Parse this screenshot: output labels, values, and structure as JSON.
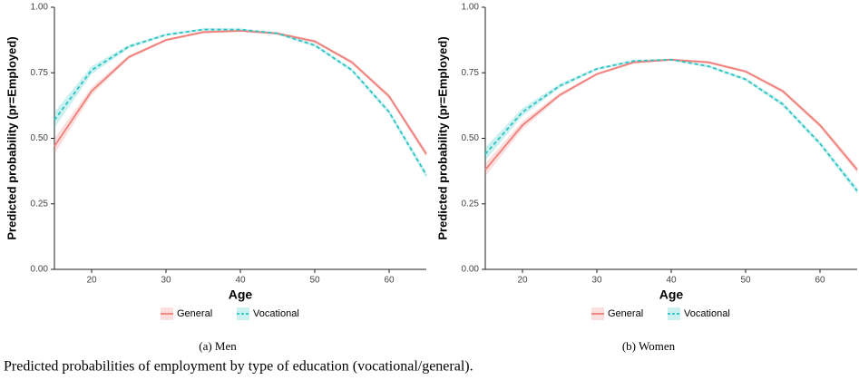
{
  "chart_data": [
    {
      "type": "line",
      "caption": "(a) Men",
      "xlabel": "Age",
      "ylabel": "Predicted probability (pr=Employed)",
      "x": [
        15,
        20,
        25,
        30,
        35,
        40,
        45,
        50,
        55,
        60,
        65
      ],
      "xlim": [
        15,
        65
      ],
      "xticks": [
        20,
        30,
        40,
        50,
        60
      ],
      "ylim": [
        0,
        1
      ],
      "yticks": [
        {
          "value": 0,
          "label": "0.00"
        },
        {
          "value": 0.25,
          "label": "0.25"
        },
        {
          "value": 0.5,
          "label": "0.50"
        },
        {
          "value": 0.75,
          "label": "0.75"
        },
        {
          "value": 1,
          "label": "1.00"
        }
      ],
      "series": [
        {
          "name": "General",
          "color": "#f07f7a",
          "linestyle": "solid",
          "values": [
            0.47,
            0.68,
            0.81,
            0.875,
            0.905,
            0.91,
            0.9,
            0.87,
            0.79,
            0.66,
            0.44
          ],
          "lower": [
            0.44,
            0.665,
            0.803,
            0.87,
            0.9,
            0.906,
            0.895,
            0.864,
            0.783,
            0.651,
            0.428
          ],
          "upper": [
            0.5,
            0.695,
            0.817,
            0.88,
            0.91,
            0.914,
            0.905,
            0.876,
            0.797,
            0.669,
            0.452
          ]
        },
        {
          "name": "Vocational",
          "color": "#2cc3c3",
          "linestyle": "dashed",
          "values": [
            0.57,
            0.76,
            0.85,
            0.895,
            0.915,
            0.915,
            0.9,
            0.855,
            0.76,
            0.6,
            0.36
          ],
          "lower": [
            0.54,
            0.745,
            0.843,
            0.89,
            0.91,
            0.911,
            0.895,
            0.849,
            0.753,
            0.591,
            0.348
          ],
          "upper": [
            0.6,
            0.775,
            0.857,
            0.9,
            0.92,
            0.919,
            0.905,
            0.861,
            0.767,
            0.609,
            0.372
          ]
        }
      ]
    },
    {
      "type": "line",
      "caption": "(b) Women",
      "xlabel": "Age",
      "ylabel": "Predicted probability (pr=Employed)",
      "x": [
        15,
        20,
        25,
        30,
        35,
        40,
        45,
        50,
        55,
        60,
        65
      ],
      "xlim": [
        15,
        65
      ],
      "xticks": [
        20,
        30,
        40,
        50,
        60
      ],
      "ylim": [
        0,
        1
      ],
      "yticks": [
        {
          "value": 0,
          "label": "0.00"
        },
        {
          "value": 0.25,
          "label": "0.25"
        },
        {
          "value": 0.5,
          "label": "0.50"
        },
        {
          "value": 0.75,
          "label": "0.75"
        },
        {
          "value": 1,
          "label": "1.00"
        }
      ],
      "series": [
        {
          "name": "General",
          "color": "#f07f7a",
          "linestyle": "solid",
          "values": [
            0.38,
            0.55,
            0.665,
            0.745,
            0.79,
            0.8,
            0.79,
            0.755,
            0.68,
            0.55,
            0.38
          ],
          "lower": [
            0.355,
            0.535,
            0.657,
            0.74,
            0.785,
            0.796,
            0.785,
            0.749,
            0.672,
            0.541,
            0.368
          ],
          "upper": [
            0.405,
            0.565,
            0.673,
            0.75,
            0.795,
            0.804,
            0.795,
            0.761,
            0.688,
            0.559,
            0.392
          ]
        },
        {
          "name": "Vocational",
          "color": "#2cc3c3",
          "linestyle": "dashed",
          "values": [
            0.44,
            0.6,
            0.7,
            0.765,
            0.795,
            0.8,
            0.775,
            0.725,
            0.63,
            0.48,
            0.3
          ],
          "lower": [
            0.415,
            0.585,
            0.692,
            0.76,
            0.79,
            0.796,
            0.77,
            0.719,
            0.622,
            0.471,
            0.288
          ],
          "upper": [
            0.465,
            0.615,
            0.708,
            0.77,
            0.8,
            0.804,
            0.78,
            0.731,
            0.638,
            0.489,
            0.312
          ]
        }
      ]
    }
  ],
  "caption": "Predicted probabilities of employment by type of education (vocational/general)."
}
